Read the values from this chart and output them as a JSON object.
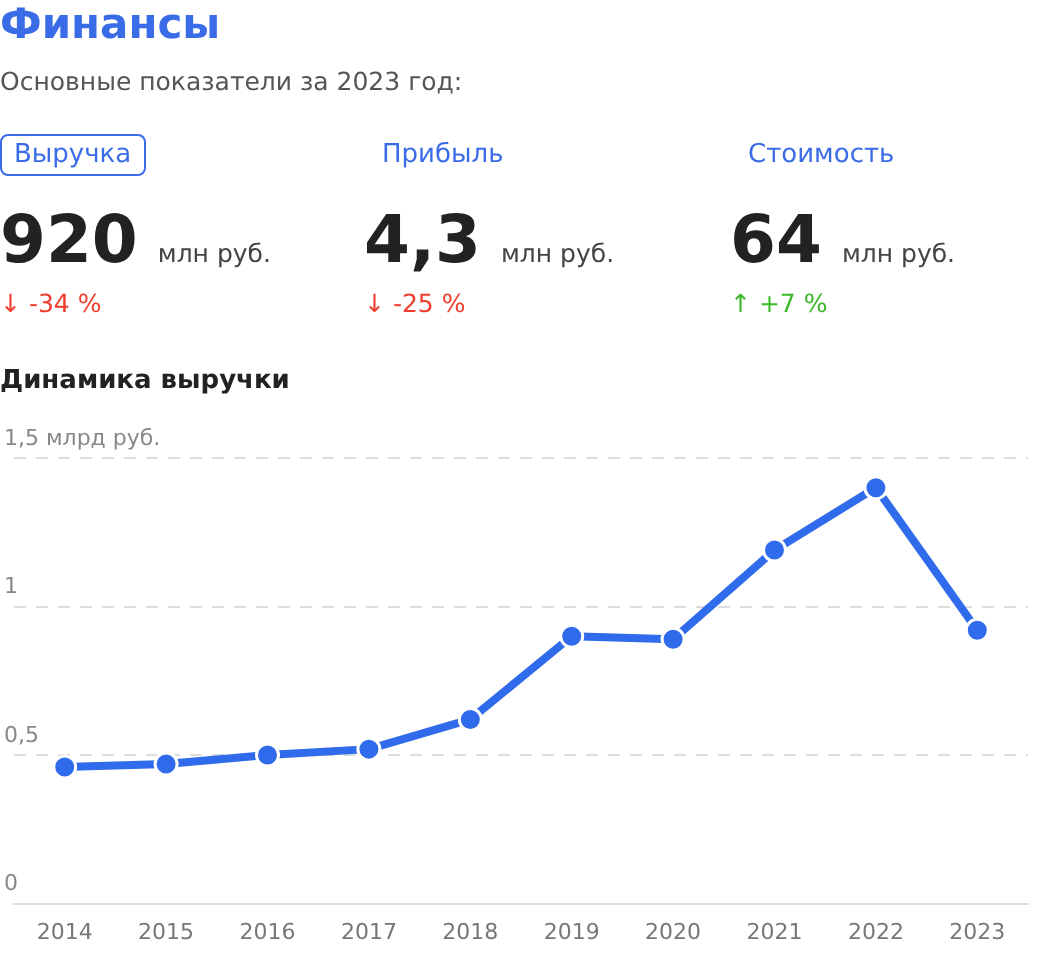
{
  "chart_data": [
    {
      "type": "other",
      "title": "Финансы",
      "subtitle": "Основные показатели за 2023 год:",
      "annotations": [
        "Выручка",
        "920",
        "млн руб.",
        "↓ -34 %",
        "Прибыль",
        "4,3",
        "млн руб.",
        "↓ -25 %",
        "Стоимость",
        "64",
        "млн руб.",
        "↑ +7 %"
      ],
      "colors": [
        "#f03e2e",
        "#f03e2e",
        "#3cb82a"
      ]
    },
    {
      "type": "line",
      "title": "Динамика выручки",
      "categories": [
        "2014",
        "2015",
        "2016",
        "2017",
        "2018",
        "2019",
        "2020",
        "2021",
        "2022",
        "2023"
      ],
      "series": [
        {
          "color": "#2f6bea",
          "values": [
            0.46,
            0.47,
            0.5,
            0.52,
            0.62,
            0.9,
            0.89,
            1.19,
            1.4,
            0.92
          ]
        }
      ],
      "ylim": [
        0,
        1.5
      ],
      "yticks": [
        0,
        {
          "value": 0.5,
          "label": "0,5"
        },
        1,
        {
          "value": 1.5,
          "label": "1,5 млрд руб."
        }
      ],
      "grid": "y",
      "marker": "circle",
      "line_style": "solid",
      "legend": false
    }
  ]
}
